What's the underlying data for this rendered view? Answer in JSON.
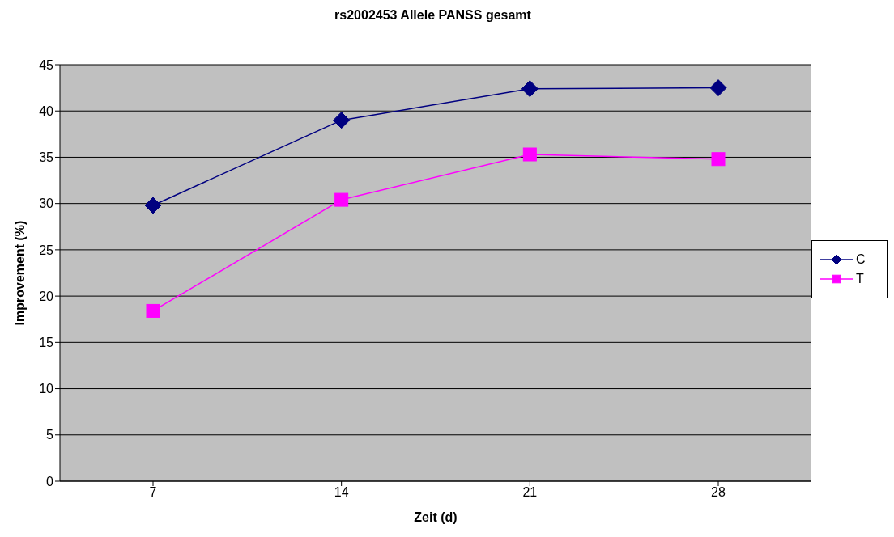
{
  "chart_data": {
    "type": "line",
    "title": "rs2002453 Allele PANSS gesamt",
    "xlabel": "Zeit (d)",
    "ylabel": "Improvement (%)",
    "categories": [
      "7",
      "14",
      "21",
      "28"
    ],
    "series": [
      {
        "name": "C",
        "color": "#000080",
        "marker": "diamond",
        "values": [
          29.8,
          39.0,
          42.4,
          42.5
        ]
      },
      {
        "name": "T",
        "color": "#ff00ff",
        "marker": "square",
        "values": [
          18.4,
          30.4,
          35.3,
          34.8
        ]
      }
    ],
    "ylim": [
      0,
      45
    ],
    "yticks": [
      0,
      5,
      10,
      15,
      20,
      25,
      30,
      35,
      40,
      45
    ],
    "grid": "y",
    "legend": "right",
    "line_style": "solid"
  }
}
